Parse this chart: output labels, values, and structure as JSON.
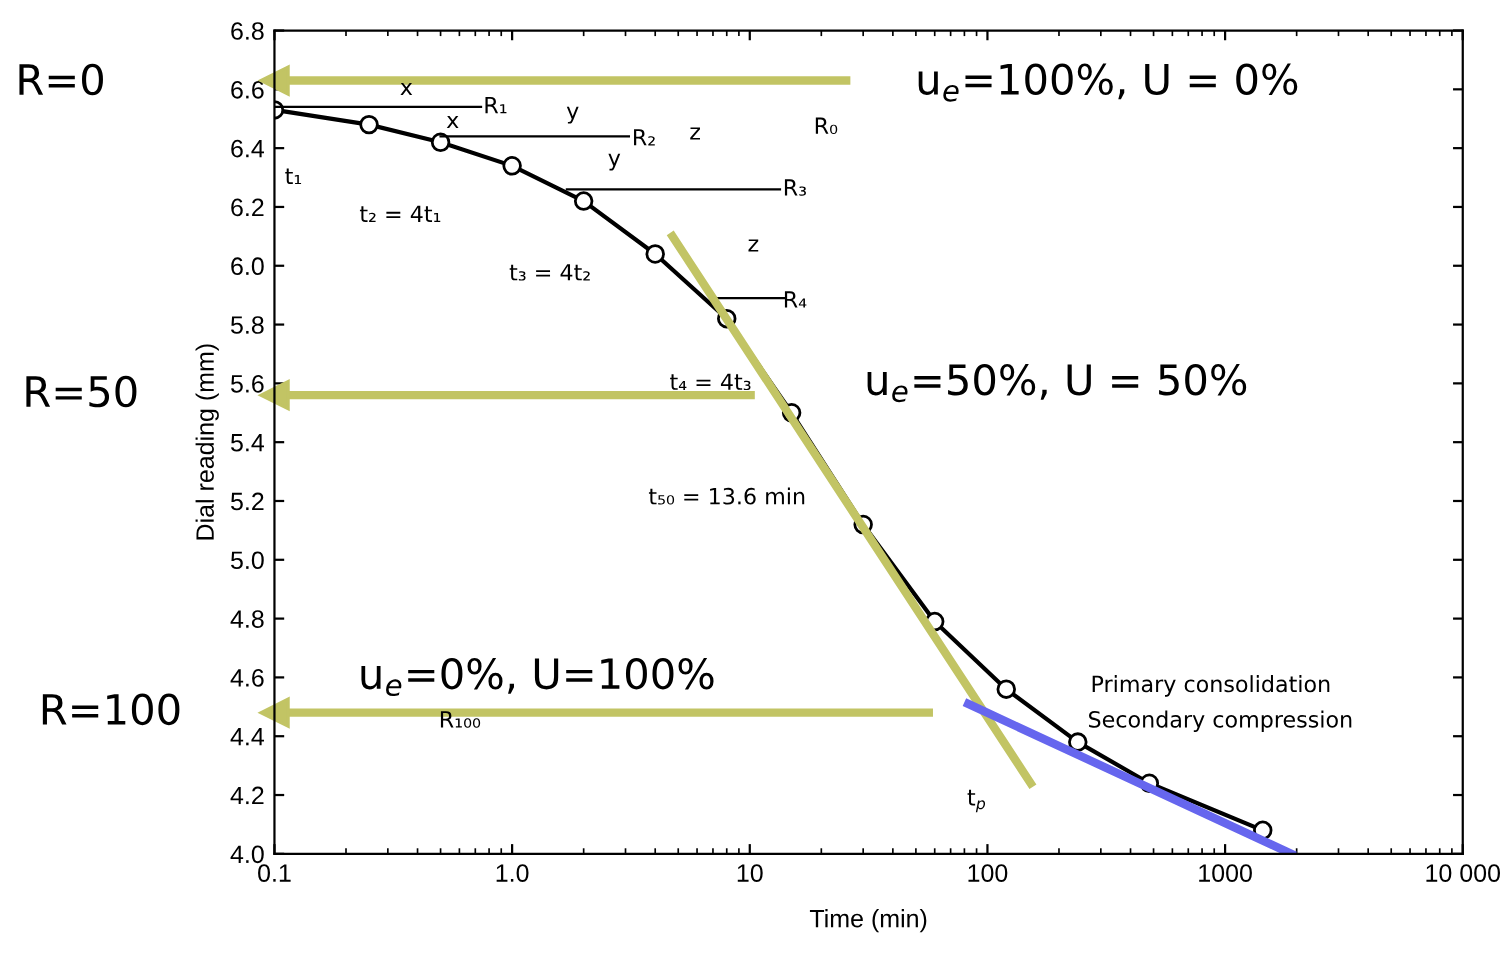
{
  "chart_data": {
    "type": "line",
    "xlabel": "Time (min)",
    "ylabel": "Dial reading (mm)",
    "log": "x",
    "xlim": [
      0.1,
      10000
    ],
    "ylim": [
      4.0,
      6.8
    ],
    "xticks": [
      0.1,
      {
        "value": 1,
        "label": "1.0"
      },
      10,
      100,
      1000,
      {
        "value": 10000,
        "label": "10 000"
      }
    ],
    "yticks": [
      {
        "value": 4,
        "label": "4.0"
      },
      4.2,
      4.4,
      4.6,
      4.8,
      {
        "value": 5,
        "label": "5.0"
      },
      5.2,
      5.4,
      5.6,
      5.8,
      {
        "value": 6,
        "label": "6.0"
      },
      6.2,
      6.4,
      6.6,
      6.8
    ],
    "grid": false,
    "series": [
      {
        "color": "#000000",
        "marker": "circle",
        "x": [
          0.1,
          0.25,
          0.5,
          1,
          2,
          4,
          8,
          15,
          30,
          60,
          120,
          240,
          480,
          1440
        ],
        "values": [
          6.53,
          6.48,
          6.42,
          6.34,
          6.22,
          6.04,
          5.82,
          5.5,
          5.12,
          4.79,
          4.56,
          4.38,
          4.24,
          4.08
        ]
      },
      {
        "color": "#000000",
        "marker": "none",
        "x": [
          0.1,
          0.74
        ],
        "values": [
          6.54,
          6.54
        ]
      },
      {
        "color": "#000000",
        "marker": "none",
        "x": [
          0.5,
          3.1
        ],
        "values": [
          6.44,
          6.44
        ]
      },
      {
        "color": "#000000",
        "marker": "none",
        "x": [
          1.7,
          13.4
        ],
        "values": [
          6.26,
          6.26
        ]
      },
      {
        "color": "#000000",
        "marker": "none",
        "x": [
          7.3,
          14
        ],
        "values": [
          5.89,
          5.89
        ]
      },
      {
        "color": "#c2c464",
        "marker": "none",
        "x": [
          4.73,
          152
        ],
        "values": [
          6.1,
          4.24
        ]
      },
      {
        "color": "#6666ee",
        "marker": "none",
        "x": [
          83,
          1900
        ],
        "values": [
          4.51,
          4.0
        ]
      },
      {
        "color": "#c2c464",
        "marker": "triangle",
        "x": [
          0.1,
          26.5
        ],
        "values": [
          6.63,
          6.63
        ]
      },
      {
        "color": "#c2c464",
        "marker": "triangle",
        "x": [
          0.1,
          10.5
        ],
        "values": [
          5.56,
          5.56
        ]
      },
      {
        "color": "#c2c464",
        "marker": "triangle",
        "x": [
          0.1,
          59
        ],
        "values": [
          4.48,
          4.48
        ]
      }
    ],
    "annotations": [
      "R₁",
      "R₂",
      "R₃",
      "R₄",
      "R₀",
      "R₁₀₀",
      "x",
      "x",
      "y",
      "y",
      "z",
      "z",
      "t₁",
      "t₂ = 4t₁",
      "t₃ = 4t₂",
      "t₄ = 4t₃",
      "t₅₀ = 13.6 min",
      "t$_{p}$",
      "Primary consolidation",
      "Secondary compression",
      "u$_{e}$=100%, U = 0%",
      "u$_{e}$=50%, U = 50%",
      "u$_{e}$=0%, U=100%",
      "R=0",
      "R=50",
      "R=100"
    ]
  }
}
